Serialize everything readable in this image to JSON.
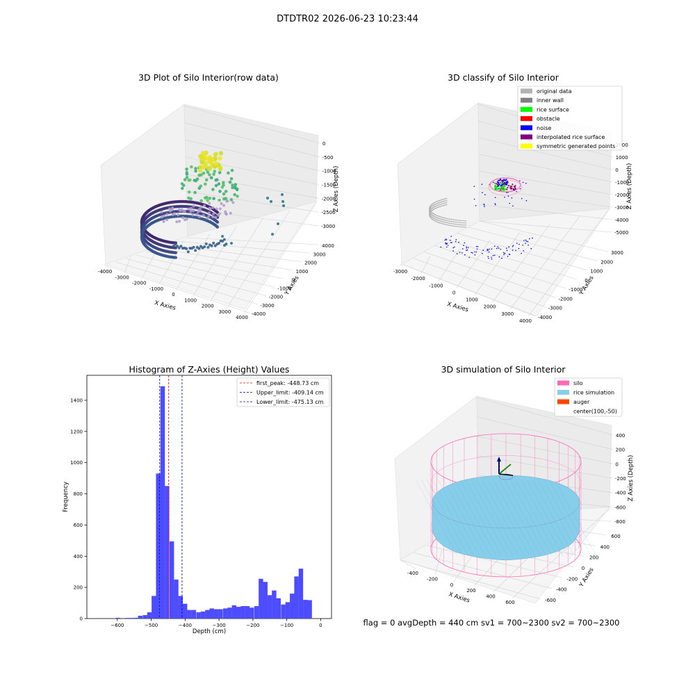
{
  "suptitle": "DTDTR02 2026-06-23 10:23:44",
  "footer": "flag = 0     avgDepth = 440 cm  sv1 = 700~2300  sv2 = 700~2300",
  "chart_data": [
    {
      "type": "scatter3d",
      "title": "3D Plot of Silo Interior(row data)",
      "xlabel": "X Axies",
      "ylabel": "Y Axies",
      "zlabel": "Z Axies (Depth)",
      "xticks": [
        "-4000",
        "-3000",
        "-2000",
        "-1000",
        "0",
        "1000",
        "2000",
        "3000",
        "4000"
      ],
      "yticks": [
        "-4000",
        "-3000",
        "-2000",
        "-1000",
        "0",
        "1000",
        "2000",
        "3000",
        "4000"
      ],
      "zticks": [
        "0",
        "-500",
        "-1000",
        "-1500",
        "-2000",
        "-2500",
        "-3000"
      ],
      "colormap": "viridis"
    },
    {
      "type": "scatter3d",
      "title": "3D classify of Silo Interior",
      "xlabel": "X Axies",
      "ylabel": "Y Axies",
      "zlabel": "Z Axies (Depth)",
      "xticks": [
        "-3000",
        "-2000",
        "-1000",
        "0",
        "1000",
        "2000",
        "3000",
        "4000"
      ],
      "yticks": [
        "-4000",
        "-3000",
        "-2000",
        "-1000",
        "0",
        "1000",
        "2000",
        "3000"
      ],
      "zticks": [
        "2000",
        "1000",
        "0",
        "-1000",
        "-2000",
        "-3000",
        "-4000",
        "-5000"
      ],
      "legend_position": "top-right",
      "legend": [
        {
          "label": "original data",
          "color": "#b3b3b3"
        },
        {
          "label": "inner wall",
          "color": "#808080"
        },
        {
          "label": "rice surface",
          "color": "#00ff00"
        },
        {
          "label": "obstacle",
          "color": "#ff0000"
        },
        {
          "label": "noise",
          "color": "#0000ff"
        },
        {
          "label": "interpolated rice surface",
          "color": "#800080"
        },
        {
          "label": "symmetric generated points",
          "color": "#ffff00"
        }
      ]
    },
    {
      "type": "bar",
      "title": "Histogram of Z-Axies (Height) Values",
      "xlabel": "Depth (cm)",
      "ylabel": "Frequency",
      "xlim": [
        -690,
        32
      ],
      "ylim": [
        0,
        1560
      ],
      "xticks": [
        -600,
        -500,
        -400,
        -300,
        -200,
        -100,
        0
      ],
      "yticks": [
        0,
        200,
        400,
        600,
        800,
        1000,
        1200,
        1400
      ],
      "bin_width": 13.2,
      "bar_color": "#4d4dff",
      "bins_left": [
        -605,
        -578,
        -565,
        -552,
        -539,
        -525,
        -512,
        -499,
        -486,
        -473,
        -460,
        -446,
        -433,
        -420,
        -407,
        -394,
        -381,
        -367,
        -354,
        -341,
        -328,
        -315,
        -302,
        -288,
        -275,
        -262,
        -249,
        -236,
        -223,
        -210,
        -196,
        -183,
        -170,
        -157,
        -144,
        -131,
        -117,
        -104,
        -91,
        -78,
        -65,
        -52,
        -39,
        -25,
        -12
      ],
      "values": [
        5,
        4,
        4,
        5,
        18,
        22,
        40,
        145,
        930,
        1490,
        850,
        495,
        250,
        145,
        95,
        55,
        55,
        40,
        45,
        55,
        65,
        60,
        60,
        65,
        70,
        85,
        75,
        80,
        80,
        70,
        80,
        255,
        235,
        150,
        180,
        130,
        90,
        105,
        160,
        270,
        320,
        120,
        118,
        0,
        0
      ],
      "lines": [
        {
          "label": "first_peak: -448.73 cm",
          "x": -448.73,
          "color": "#ff0000"
        },
        {
          "label": "Upper_limit: -409.14 cm",
          "x": -409.14,
          "color": "#0000aa"
        },
        {
          "label": "Lower_limit: -475.13 cm",
          "x": -475.13,
          "color": "#0000aa"
        }
      ],
      "legend_position": "top-right"
    },
    {
      "type": "surface3d",
      "title": "3D simulation of Silo Interior",
      "xlabel": "X Axies",
      "ylabel": "Y Axies",
      "zlabel": "Z Axies (Depth)",
      "xticks": [
        "-400",
        "-200",
        "0",
        "200",
        "400",
        "600"
      ],
      "yticks": [
        "-600",
        "-400",
        "-200",
        "0",
        "200",
        "400",
        "600"
      ],
      "zticks": [
        "400",
        "200",
        "0",
        "-200",
        "-400",
        "-600",
        "-800"
      ],
      "legend_position": "top-right",
      "legend": [
        {
          "label": "silo",
          "color": "#ff69b4"
        },
        {
          "label": "rice simulation",
          "color": "#87ceeb"
        },
        {
          "label": "auger",
          "color": "#ff4500"
        },
        {
          "label": "center(100,-50)",
          "color": ""
        }
      ]
    }
  ]
}
